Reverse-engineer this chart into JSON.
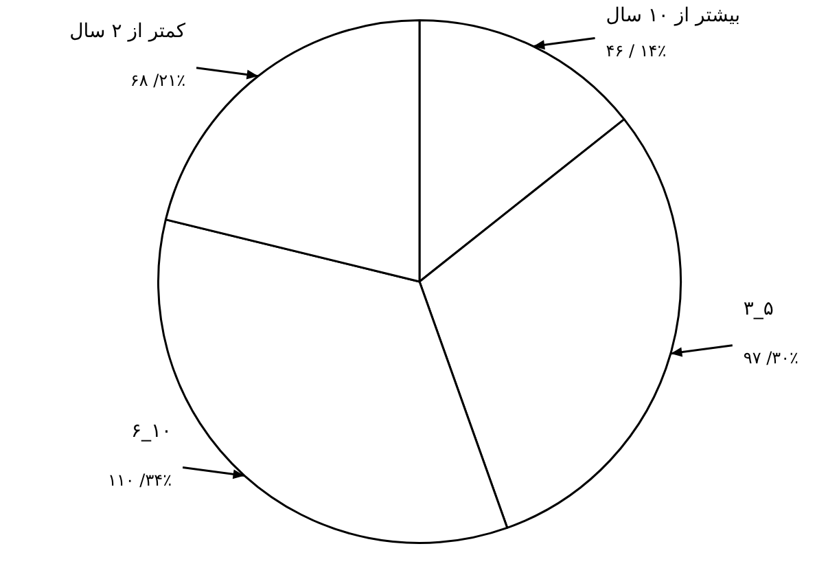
{
  "chart_data": {
    "type": "pie",
    "categories": [
      "بیشتر از ۱۰ سال",
      "۳_۵",
      "۶_۱۰",
      "کمتر از ۲ سال"
    ],
    "values": [
      46,
      97,
      110,
      68
    ],
    "value_labels": [
      "۴۶ / ۱۴٪",
      "۹۷ /۳۰٪",
      "۱۱۰ /۳۴٪",
      "۶۸ /۲۱٪"
    ],
    "colors": [
      "#ffffff",
      "#ffffff",
      "#ffffff",
      "#ffffff"
    ],
    "legend": false
  }
}
